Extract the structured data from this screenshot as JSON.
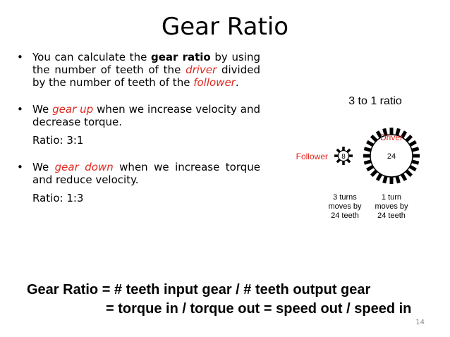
{
  "slide": {
    "title": "Gear Ratio",
    "page_number": "14"
  },
  "bullets": {
    "b1": {
      "t1": "You can calculate the ",
      "bold": "gear ratio",
      "t2": " by using the number of teeth of the ",
      "driver": "driver",
      "t3": " divided by the number of teeth of the ",
      "follower": "follower",
      "t4": "."
    },
    "b2": {
      "t1": "We ",
      "em": "gear up",
      "t2": " when we increase velocity and decrease torque.",
      "ratio": "Ratio: 3:1"
    },
    "b3": {
      "t1": "We ",
      "em": "gear down",
      "t2": " when we increase torque and reduce velocity.",
      "ratio": "Ratio: 1:3"
    },
    "bullet_symbol": "•"
  },
  "diagram": {
    "caption": "3 to 1 ratio",
    "driver_label": "Driver",
    "follower_label": "Follower",
    "small_gear_teeth": "8",
    "large_gear_teeth": "24",
    "small_note": [
      "3 turns",
      "moves by",
      "24 teeth"
    ],
    "large_note": [
      "1 turn",
      "moves by",
      "24 teeth"
    ],
    "label_color": "#e0281e"
  },
  "formula": {
    "line1": "Gear Ratio = # teeth input gear / # teeth output gear",
    "line2": "= torque in / torque out = speed out / speed in"
  }
}
